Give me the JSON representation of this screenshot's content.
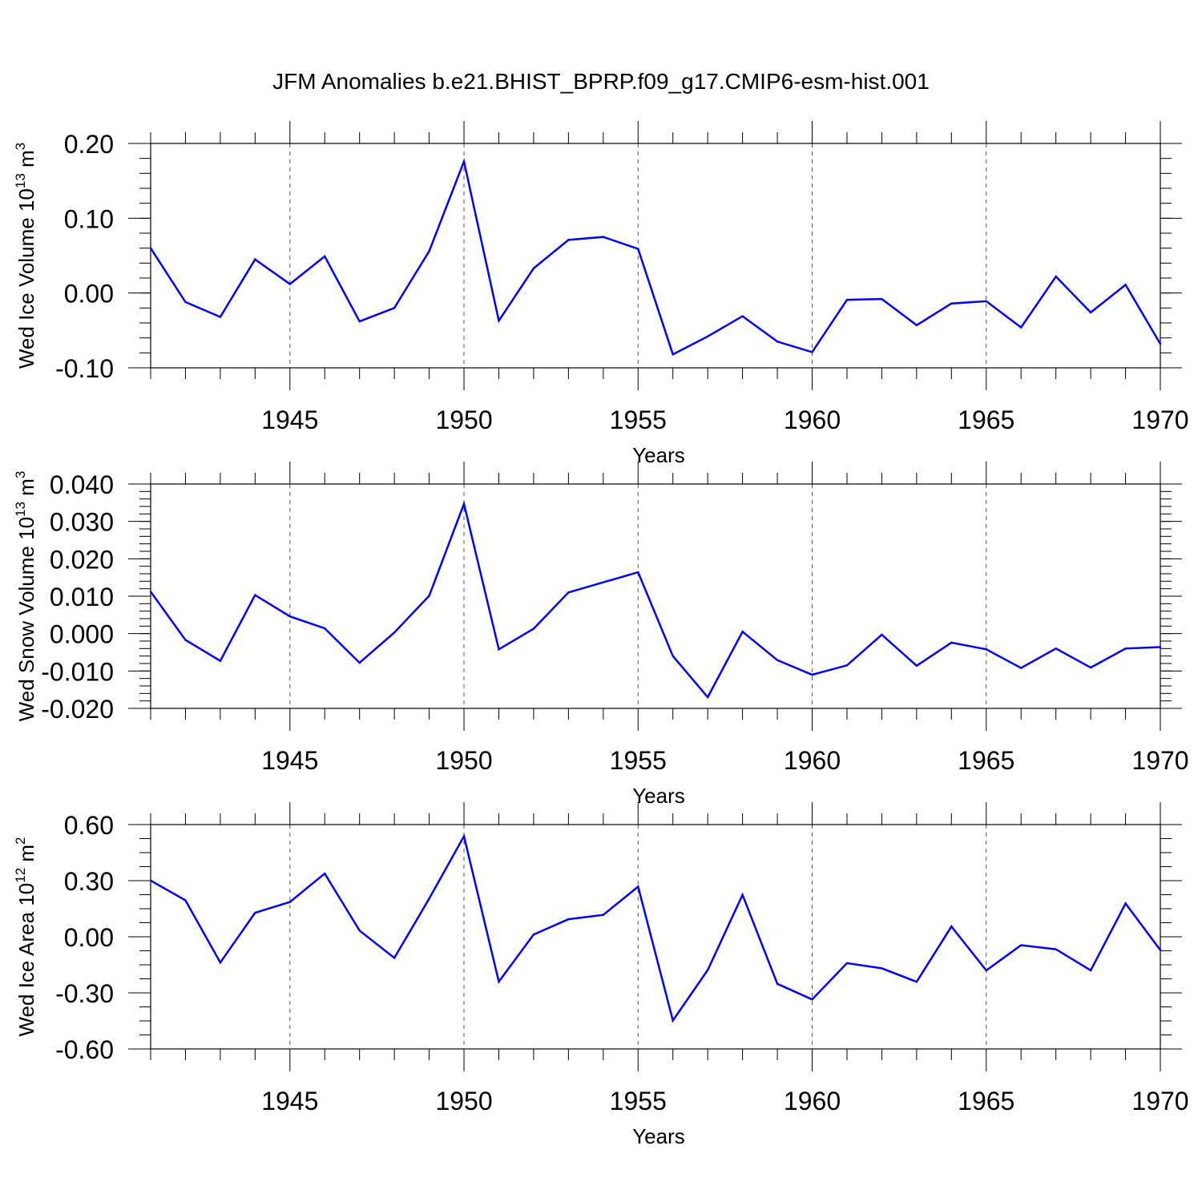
{
  "figure": {
    "title": "JFM Anomalies b.e21.BHIST_BPRP.f09_g17.CMIP6-esm-hist.001"
  },
  "colors": {
    "series": "#0000ff",
    "axis": "#000000",
    "grid": "#555555"
  },
  "chart_data": [
    {
      "type": "line",
      "ylabel_main": "Wed Ice Volume 10",
      "ylabel_exp": "13",
      "ylabel_unit": " m",
      "ylabel_unit_exp": "3",
      "xlabel": "Years",
      "xlim": [
        1941,
        1970
      ],
      "ylim": [
        -0.1,
        0.2
      ],
      "yticks": [
        -0.1,
        0.0,
        0.1,
        0.2
      ],
      "ytick_labels": [
        "-0.10",
        "0.00",
        "0.10",
        "0.20"
      ],
      "yminor_step": 0.02,
      "xticks": [
        1945,
        1950,
        1955,
        1960,
        1965,
        1970
      ],
      "xtick_labels": [
        "1945",
        "1950",
        "1955",
        "1960",
        "1965",
        "1970"
      ],
      "series": [
        {
          "name": "Wed Ice Volume",
          "x": [
            1941,
            1942,
            1943,
            1944,
            1945,
            1946,
            1947,
            1948,
            1949,
            1950,
            1951,
            1952,
            1953,
            1954,
            1955,
            1956,
            1957,
            1958,
            1959,
            1960,
            1961,
            1962,
            1963,
            1964,
            1965,
            1966,
            1967,
            1968,
            1969,
            1970
          ],
          "y": [
            0.06,
            -0.012,
            -0.032,
            0.045,
            0.012,
            0.049,
            -0.038,
            -0.02,
            0.056,
            0.176,
            -0.037,
            0.033,
            0.071,
            0.075,
            0.059,
            -0.082,
            -0.058,
            -0.031,
            -0.065,
            -0.079,
            -0.009,
            -0.008,
            -0.043,
            -0.014,
            -0.011,
            -0.046,
            0.022,
            -0.026,
            0.011,
            -0.068
          ]
        }
      ]
    },
    {
      "type": "line",
      "ylabel_main": "Wed Snow Volume 10",
      "ylabel_exp": "13",
      "ylabel_unit": " m",
      "ylabel_unit_exp": "3",
      "xlabel": "Years",
      "xlim": [
        1941,
        1970
      ],
      "ylim": [
        -0.02,
        0.04
      ],
      "yticks": [
        -0.02,
        -0.01,
        0.0,
        0.01,
        0.02,
        0.03,
        0.04
      ],
      "ytick_labels": [
        "-0.020",
        "-0.010",
        "0.000",
        "0.010",
        "0.020",
        "0.030",
        "0.040"
      ],
      "yminor_step": 0.002,
      "xticks": [
        1945,
        1950,
        1955,
        1960,
        1965,
        1970
      ],
      "xtick_labels": [
        "1945",
        "1950",
        "1955",
        "1960",
        "1965",
        "1970"
      ],
      "series": [
        {
          "name": "Wed Snow Volume",
          "x": [
            1941,
            1942,
            1943,
            1944,
            1945,
            1946,
            1947,
            1948,
            1949,
            1950,
            1951,
            1952,
            1953,
            1954,
            1955,
            1956,
            1957,
            1958,
            1959,
            1960,
            1961,
            1962,
            1963,
            1964,
            1965,
            1966,
            1967,
            1968,
            1969,
            1970
          ],
          "y": [
            0.0112,
            -0.0017,
            -0.0073,
            0.0103,
            0.0046,
            0.0014,
            -0.0078,
            0.0003,
            0.0101,
            0.0347,
            -0.0042,
            0.0013,
            0.011,
            0.0137,
            0.0164,
            -0.006,
            -0.017,
            0.0005,
            -0.0071,
            -0.011,
            -0.0085,
            -0.0003,
            -0.0086,
            -0.0024,
            -0.0042,
            -0.0092,
            -0.004,
            -0.0091,
            -0.004,
            -0.0036
          ]
        }
      ]
    },
    {
      "type": "line",
      "ylabel_main": "Wed Ice Area 10",
      "ylabel_exp": "12",
      "ylabel_unit": " m",
      "ylabel_unit_exp": "2",
      "xlabel": "Years",
      "xlim": [
        1941,
        1970
      ],
      "ylim": [
        -0.6,
        0.6
      ],
      "yticks": [
        -0.6,
        -0.3,
        0.0,
        0.3,
        0.6
      ],
      "ytick_labels": [
        "-0.60",
        "-0.30",
        "0.00",
        "0.30",
        "0.60"
      ],
      "yminor_step": 0.075,
      "xticks": [
        1945,
        1950,
        1955,
        1960,
        1965,
        1970
      ],
      "xtick_labels": [
        "1945",
        "1950",
        "1955",
        "1960",
        "1965",
        "1970"
      ],
      "series": [
        {
          "name": "Wed Ice Area",
          "x": [
            1941,
            1942,
            1943,
            1944,
            1945,
            1946,
            1947,
            1948,
            1949,
            1950,
            1951,
            1952,
            1953,
            1954,
            1955,
            1956,
            1957,
            1958,
            1959,
            1960,
            1961,
            1962,
            1963,
            1964,
            1965,
            1966,
            1967,
            1968,
            1969,
            1970
          ],
          "y": [
            0.301,
            0.195,
            -0.138,
            0.128,
            0.186,
            0.338,
            0.033,
            -0.113,
            0.204,
            0.538,
            -0.24,
            0.012,
            0.094,
            0.117,
            0.268,
            -0.448,
            -0.178,
            0.224,
            -0.252,
            -0.335,
            -0.141,
            -0.169,
            -0.241,
            0.055,
            -0.18,
            -0.045,
            -0.067,
            -0.18,
            0.178,
            -0.071
          ]
        }
      ]
    }
  ]
}
